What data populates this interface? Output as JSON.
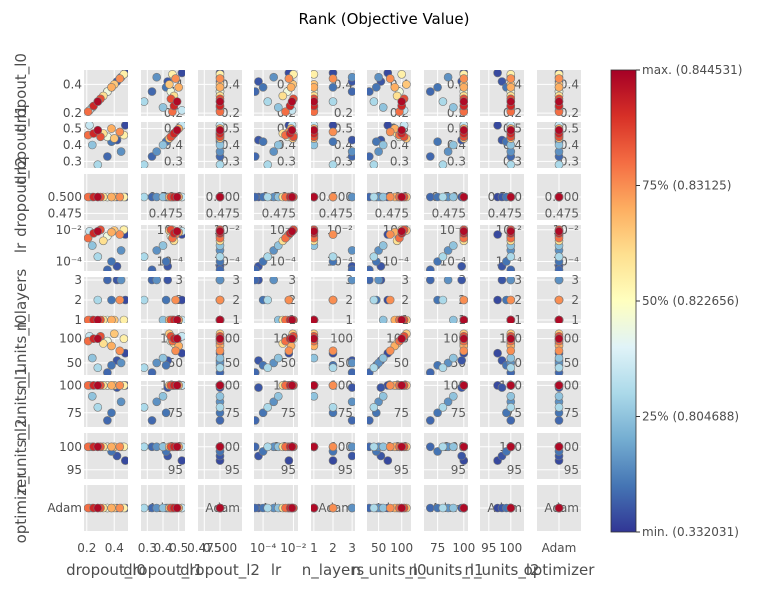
{
  "chart_data": {
    "type": "scatter",
    "title": "Rank (Objective Value)",
    "params": [
      "dropout_l0",
      "dropout_l1",
      "dropout_l2",
      "lr",
      "n_layers",
      "n_units_l0",
      "n_units_l1",
      "n_units_l2",
      "optimizer"
    ],
    "grid": true,
    "x_ticks": [
      [
        "0.2",
        "0.4"
      ],
      [
        "0.3",
        "0.4",
        "0.5"
      ],
      [
        "0.475",
        "0.500"
      ],
      [
        "10⁻⁴",
        "10⁻²"
      ],
      [
        "1",
        "2",
        "3"
      ],
      [
        "50",
        "100"
      ],
      [
        "75",
        "100"
      ],
      [
        "95",
        "100"
      ],
      [
        "Adam"
      ]
    ],
    "y_ticks": [
      [
        "0.2",
        "0.4"
      ],
      [
        "0.3",
        "0.4",
        "0.5"
      ],
      [
        "0.475",
        "0.500"
      ],
      [
        "10⁻⁴",
        "10⁻²"
      ],
      [
        "1",
        "2",
        "3"
      ],
      [
        "50",
        "100"
      ],
      [
        "75",
        "100"
      ],
      [
        "95",
        "100"
      ],
      [
        "Adam"
      ]
    ],
    "trials": [
      {
        "dropout_l0": 0.21,
        "dropout_l1": 0.46,
        "dropout_l2": 0.5,
        "lr": 0.003,
        "n_layers": 1,
        "n_units_l0": 95,
        "n_units_l1": 100,
        "n_units_l2": 100,
        "optimizer": "Adam",
        "rank": 0.8
      },
      {
        "dropout_l0": 0.25,
        "dropout_l1": 0.47,
        "dropout_l2": 0.5,
        "lr": 0.006,
        "n_layers": 1,
        "n_units_l0": 100,
        "n_units_l1": 100,
        "n_units_l2": 100,
        "optimizer": "Adam",
        "rank": 0.92
      },
      {
        "dropout_l0": 0.28,
        "dropout_l1": 0.49,
        "dropout_l2": 0.5,
        "lr": 0.008,
        "n_layers": 1,
        "n_units_l0": 100,
        "n_units_l1": 100,
        "n_units_l2": 100,
        "optimizer": "Adam",
        "rank": 0.98
      },
      {
        "dropout_l0": 0.3,
        "dropout_l1": 0.45,
        "dropout_l2": 0.5,
        "lr": 0.01,
        "n_layers": 1,
        "n_units_l0": 105,
        "n_units_l1": 100,
        "n_units_l2": 100,
        "optimizer": "Adam",
        "rank": 0.85
      },
      {
        "dropout_l0": 0.32,
        "dropout_l1": 0.47,
        "dropout_l2": 0.5,
        "lr": 0.002,
        "n_layers": 1,
        "n_units_l0": 90,
        "n_units_l1": 100,
        "n_units_l2": 100,
        "optimizer": "Adam",
        "rank": 0.6
      },
      {
        "dropout_l0": 0.35,
        "dropout_l1": 0.45,
        "dropout_l2": 0.5,
        "lr": 0.004,
        "n_layers": 1,
        "n_units_l0": 95,
        "n_units_l1": 100,
        "n_units_l2": 100,
        "optimizer": "Adam",
        "rank": 0.45
      },
      {
        "dropout_l0": 0.38,
        "dropout_l1": 0.5,
        "dropout_l2": 0.5,
        "lr": 0.007,
        "n_layers": 1,
        "n_units_l0": 85,
        "n_units_l1": 100,
        "n_units_l2": 100,
        "optimizer": "Adam",
        "rank": 0.7
      },
      {
        "dropout_l0": 0.4,
        "dropout_l1": 0.44,
        "dropout_l2": 0.5,
        "lr": 0.009,
        "n_layers": 1,
        "n_units_l0": 110,
        "n_units_l1": 100,
        "n_units_l2": 100,
        "optimizer": "Adam",
        "rank": 0.65
      },
      {
        "dropout_l0": 0.44,
        "dropout_l1": 0.48,
        "dropout_l2": 0.5,
        "lr": 0.005,
        "n_layers": 2,
        "n_units_l0": 75,
        "n_units_l1": 100,
        "n_units_l2": 100,
        "optimizer": "Adam",
        "rank": 0.75
      },
      {
        "dropout_l0": 0.47,
        "dropout_l1": 0.46,
        "dropout_l2": 0.5,
        "lr": 0.01,
        "n_layers": 1,
        "n_units_l0": 100,
        "n_units_l1": 100,
        "n_units_l2": 100,
        "optimizer": "Adam",
        "rank": 0.55
      },
      {
        "dropout_l0": 0.42,
        "dropout_l1": 0.43,
        "dropout_l2": 0.5,
        "lr": 5e-05,
        "n_layers": 3,
        "n_units_l0": 55,
        "n_units_l1": 98,
        "n_units_l2": 98,
        "optimizer": "Adam",
        "rank": 0.05
      },
      {
        "dropout_l0": 0.38,
        "dropout_l1": 0.42,
        "dropout_l2": 0.5,
        "lr": 0.0001,
        "n_layers": 2,
        "n_units_l0": 45,
        "n_units_l1": 75,
        "n_units_l2": 99,
        "optimizer": "Adam",
        "rank": 0.1
      },
      {
        "dropout_l0": 0.35,
        "dropout_l1": 0.33,
        "dropout_l2": 0.5,
        "lr": 3e-05,
        "n_layers": 3,
        "n_units_l0": 30,
        "n_units_l1": 68,
        "n_units_l2": 100,
        "optimizer": "Adam",
        "rank": 0.08
      },
      {
        "dropout_l0": 0.28,
        "dropout_l1": 0.28,
        "dropout_l2": 0.5,
        "lr": 0.0002,
        "n_layers": 2,
        "n_units_l0": 40,
        "n_units_l1": 80,
        "n_units_l2": 100,
        "optimizer": "Adam",
        "rank": 0.3
      },
      {
        "dropout_l0": 0.48,
        "dropout_l1": 0.52,
        "dropout_l2": 0.5,
        "lr": 0.005,
        "n_layers": 2,
        "n_units_l0": 70,
        "n_units_l1": 100,
        "n_units_l2": 97,
        "optimizer": "Adam",
        "rank": 0.03
      },
      {
        "dropout_l0": 0.24,
        "dropout_l1": 0.4,
        "dropout_l2": 0.5,
        "lr": 0.001,
        "n_layers": 1,
        "n_units_l0": 60,
        "n_units_l1": 90,
        "n_units_l2": 100,
        "optimizer": "Adam",
        "rank": 0.25
      },
      {
        "dropout_l0": 0.45,
        "dropout_l1": 0.36,
        "dropout_l2": 0.5,
        "lr": 0.0005,
        "n_layers": 3,
        "n_units_l0": 50,
        "n_units_l1": 85,
        "n_units_l2": 100,
        "optimizer": "Adam",
        "rank": 0.15
      },
      {
        "dropout_l0": 0.22,
        "dropout_l1": 0.52,
        "dropout_l2": 0.5,
        "lr": 0.008,
        "n_layers": 1,
        "n_units_l0": 105,
        "n_units_l1": 100,
        "n_units_l2": 100,
        "optimizer": "Adam",
        "rank": 0.35
      }
    ],
    "colorbar": {
      "min_label": "min. (0.332031)",
      "max_label": "max. (0.844531)",
      "ticks": [
        {
          "pos": 0.25,
          "label": "25% (0.804688)"
        },
        {
          "pos": 0.5,
          "label": "50% (0.822656)"
        },
        {
          "pos": 0.75,
          "label": "75% (0.83125)"
        }
      ],
      "colors": [
        "#313695",
        "#4575b4",
        "#74add1",
        "#abd9e9",
        "#e0f3f8",
        "#ffffbf",
        "#fee090",
        "#fdae61",
        "#f46d43",
        "#d73027",
        "#a50026"
      ]
    }
  }
}
